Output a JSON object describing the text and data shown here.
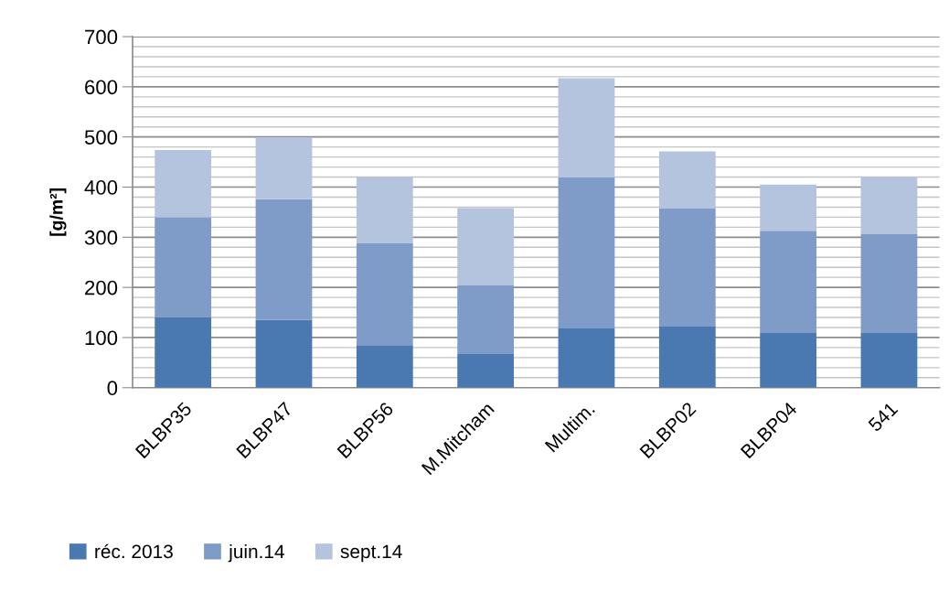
{
  "chart_data": {
    "type": "bar",
    "stacked": true,
    "ylabel": "[g/m²]",
    "categories": [
      "BLBP35",
      "BLBP47",
      "BLBP56",
      "M.Mitcham",
      "Multim.",
      "BLBP02",
      "BLBP04",
      "541"
    ],
    "series": [
      {
        "name": "réc. 2013",
        "color": "#4a78b0",
        "values": [
          141,
          135,
          85,
          67,
          118,
          122,
          109,
          109
        ]
      },
      {
        "name": "juin.14",
        "color": "#7f9cc8",
        "values": [
          199,
          241,
          203,
          137,
          301,
          236,
          204,
          197
        ]
      },
      {
        "name": "sept.14",
        "color": "#b4c3de",
        "values": [
          134,
          123,
          131,
          154,
          198,
          113,
          92,
          113
        ]
      }
    ],
    "ylim": [
      0,
      700
    ],
    "yticks": [
      0,
      {
        "value": 20,
        "label": null
      },
      {
        "value": 40,
        "label": null
      },
      {
        "value": 60,
        "label": null
      },
      {
        "value": 80,
        "label": null
      },
      100,
      {
        "value": 120,
        "label": null
      },
      {
        "value": 140,
        "label": null
      },
      {
        "value": 160,
        "label": null
      },
      {
        "value": 180,
        "label": null
      },
      200,
      {
        "value": 220,
        "label": null
      },
      {
        "value": 240,
        "label": null
      },
      {
        "value": 260,
        "label": null
      },
      {
        "value": 280,
        "label": null
      },
      300,
      {
        "value": 320,
        "label": null
      },
      {
        "value": 340,
        "label": null
      },
      {
        "value": 360,
        "label": null
      },
      {
        "value": 380,
        "label": null
      },
      400,
      {
        "value": 420,
        "label": null
      },
      {
        "value": 440,
        "label": null
      },
      {
        "value": 460,
        "label": null
      },
      {
        "value": 480,
        "label": null
      },
      500,
      {
        "value": 520,
        "label": null
      },
      {
        "value": 540,
        "label": null
      },
      {
        "value": 560,
        "label": null
      },
      {
        "value": 580,
        "label": null
      },
      600,
      {
        "value": 620,
        "label": null
      },
      {
        "value": 640,
        "label": null
      },
      {
        "value": 660,
        "label": null
      },
      {
        "value": 680,
        "label": null
      },
      700
    ],
    "grid": "y",
    "legend": "bottom"
  }
}
